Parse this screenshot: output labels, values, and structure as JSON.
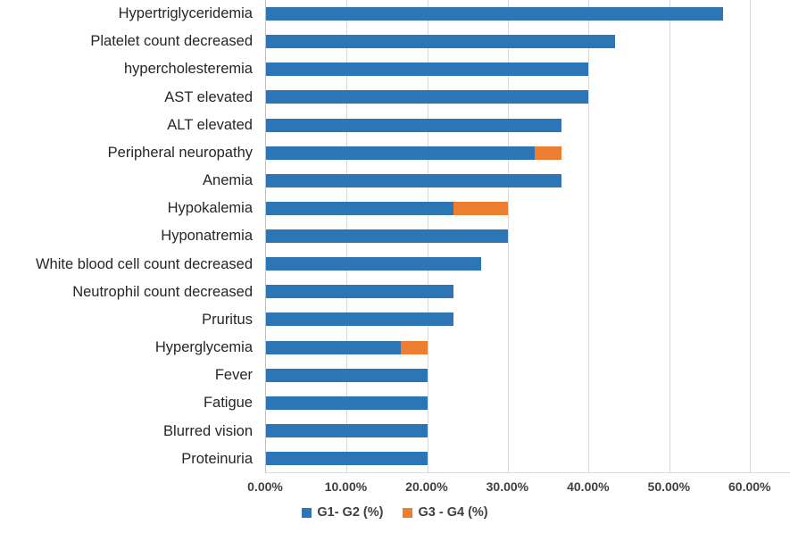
{
  "chart_data": {
    "type": "bar",
    "orientation": "horizontal",
    "stacked": true,
    "title": "",
    "xlabel": "",
    "ylabel": "",
    "grid": true,
    "categories": [
      "Hypertriglyceridemia",
      "Platelet count decreased",
      "hypercholesteremia",
      "AST elevated",
      "ALT elevated",
      "Peripheral neuropathy",
      "Anemia",
      "Hypokalemia",
      "Hyponatremia",
      "White blood cell count decreased",
      "Neutrophil count decreased",
      "Pruritus",
      "Hyperglycemia",
      "Fever",
      "Fatigue",
      "Blurred vision",
      "Proteinuria"
    ],
    "series": [
      {
        "name": "G1- G2 (%)",
        "color": "#2E75B6",
        "values": [
          56.7,
          43.3,
          40.0,
          40.0,
          36.7,
          33.3,
          36.7,
          23.3,
          30.0,
          26.7,
          23.3,
          23.3,
          16.7,
          20.0,
          20.0,
          20.0,
          20.0
        ]
      },
      {
        "name": "G3 - G4 (%)",
        "color": "#ED7D31",
        "values": [
          0,
          0,
          0,
          0,
          0,
          3.4,
          0,
          6.7,
          0,
          0,
          0,
          0,
          3.3,
          0,
          0,
          0,
          0
        ]
      }
    ],
    "x_axis": {
      "ticks": [
        "0.00%",
        "10.00%",
        "20.00%",
        "30.00%",
        "40.00%",
        "50.00%",
        "60.00%"
      ],
      "tick_values": [
        0,
        10,
        20,
        30,
        40,
        50,
        60
      ],
      "axis_min": 0,
      "axis_max_rendered": 65
    },
    "legend": {
      "position": "bottom",
      "entries": [
        "G1- G2 (%)",
        "G3 - G4 (%)"
      ]
    },
    "colors": {
      "gridline": "#D9D9D9",
      "axis_line": "#BFBFBF",
      "category_text": "#262626",
      "tick_text": "#404040",
      "legend_text": "#404040"
    }
  }
}
